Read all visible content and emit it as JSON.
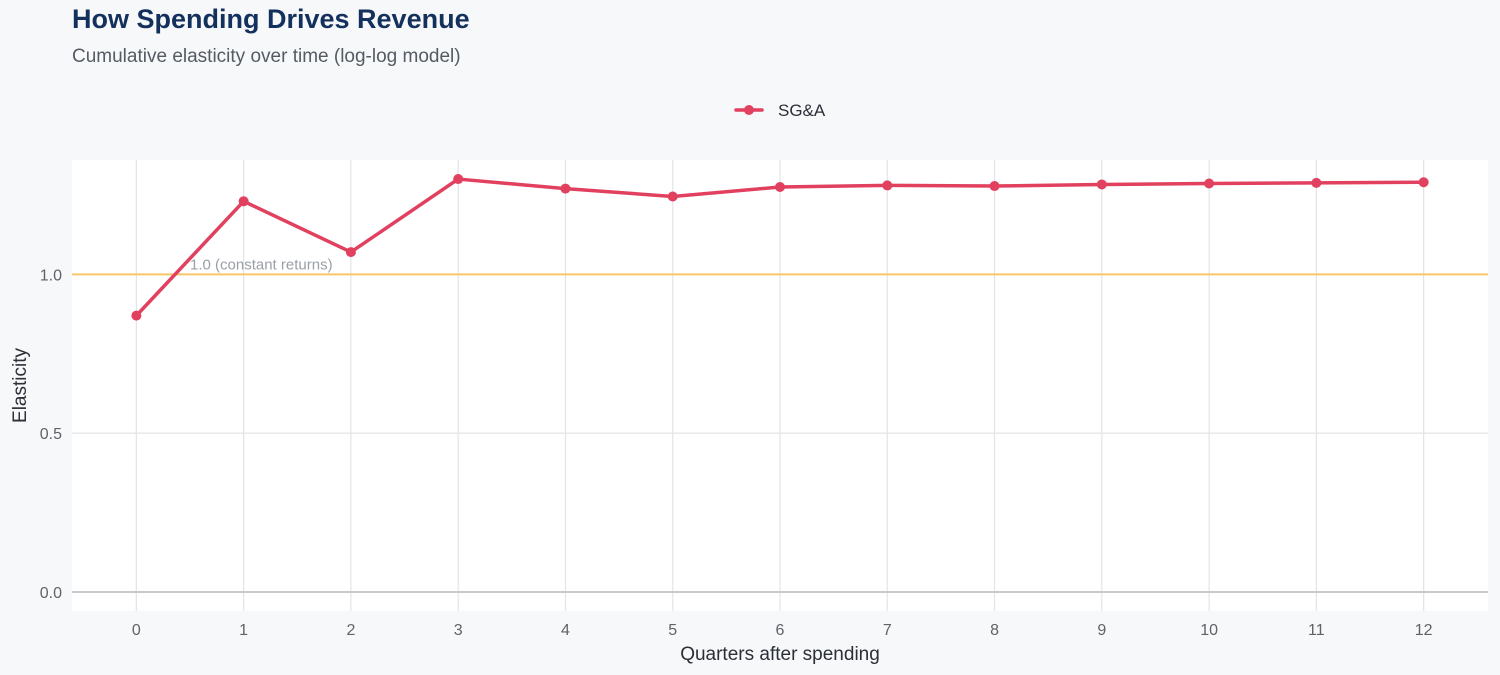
{
  "title": "How Spending Drives Revenue",
  "subtitle": "Cumulative elasticity over time (log-log model)",
  "colors": {
    "series": "#e2405f",
    "reference_line": "#f6c667",
    "grid": "#e3e4e6",
    "baseline": "#c8c9cc",
    "panel": "#ffffff",
    "title": "#13315c"
  },
  "chart_data": {
    "type": "line",
    "xlabel": "Quarters after spending",
    "ylabel": "Elasticity",
    "x": [
      0,
      1,
      2,
      3,
      4,
      5,
      6,
      7,
      8,
      9,
      10,
      11,
      12
    ],
    "xlim": [
      -0.6,
      12.6
    ],
    "ylim": [
      -0.06,
      1.36
    ],
    "y_ticks": [
      0.0,
      0.5,
      1.0
    ],
    "y_tick_labels": [
      "0.0",
      "0.5",
      "1.0"
    ],
    "x_tick_labels": [
      "0",
      "1",
      "2",
      "3",
      "4",
      "5",
      "6",
      "7",
      "8",
      "9",
      "10",
      "11",
      "12"
    ],
    "series": [
      {
        "name": "SG&A",
        "values": [
          0.87,
          1.23,
          1.07,
          1.3,
          1.27,
          1.245,
          1.275,
          1.28,
          1.278,
          1.283,
          1.286,
          1.288,
          1.29
        ]
      }
    ],
    "reference_line": {
      "y": 1.0,
      "label": "1.0 (constant returns)"
    },
    "legend_position": "top-center",
    "grid": true
  }
}
